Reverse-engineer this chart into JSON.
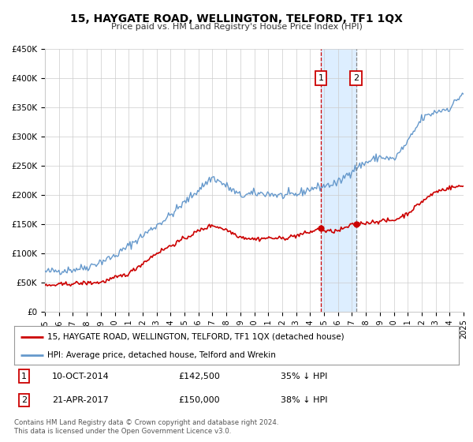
{
  "title": "15, HAYGATE ROAD, WELLINGTON, TELFORD, TF1 1QX",
  "subtitle": "Price paid vs. HM Land Registry's House Price Index (HPI)",
  "legend_line1": "15, HAYGATE ROAD, WELLINGTON, TELFORD, TF1 1QX (detached house)",
  "legend_line2": "HPI: Average price, detached house, Telford and Wrekin",
  "footnote1": "Contains HM Land Registry data © Crown copyright and database right 2024.",
  "footnote2": "This data is licensed under the Open Government Licence v3.0.",
  "price_paid_color": "#cc0000",
  "hpi_color": "#6699cc",
  "marker_color": "#cc0000",
  "highlight_color": "#ddeeff",
  "vline_color": "#cc0000",
  "vline2_color": "#888888",
  "sale1_date": 2014.78,
  "sale1_price": 142500,
  "sale2_date": 2017.31,
  "sale2_price": 150000,
  "xmin": 1995,
  "xmax": 2025,
  "ymin": 0,
  "ymax": 450000,
  "yticks": [
    0,
    50000,
    100000,
    150000,
    200000,
    250000,
    300000,
    350000,
    400000,
    450000
  ],
  "ytick_labels": [
    "£0",
    "£50K",
    "£100K",
    "£150K",
    "£200K",
    "£250K",
    "£300K",
    "£350K",
    "£400K",
    "£450K"
  ],
  "xticks": [
    1995,
    1996,
    1997,
    1998,
    1999,
    2000,
    2001,
    2002,
    2003,
    2004,
    2005,
    2006,
    2007,
    2008,
    2009,
    2010,
    2011,
    2012,
    2013,
    2014,
    2015,
    2016,
    2017,
    2018,
    2019,
    2020,
    2021,
    2022,
    2023,
    2024,
    2025
  ]
}
